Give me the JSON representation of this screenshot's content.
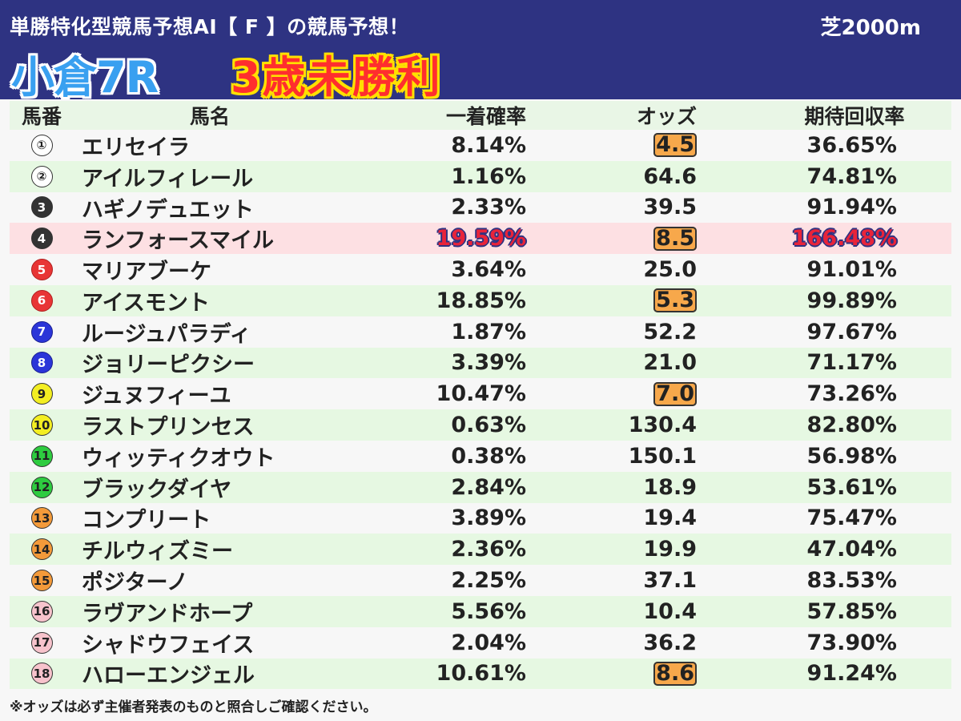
{
  "header": {
    "subtitle": "単勝特化型競馬予想AI【 F 】の競馬予想！",
    "surface": "芝2000m",
    "race": "小倉7R",
    "race_class": "3歳未勝利"
  },
  "columns": {
    "num": "馬番",
    "name": "馬名",
    "win_prob": "一着確率",
    "odds": "オッズ",
    "expected_return": "期待回収率"
  },
  "rows": [
    {
      "num": "①",
      "name": "エリセイラ",
      "prob": "8.14%",
      "odds": "4.5",
      "ev": "36.65%",
      "badge": "w"
    },
    {
      "num": "②",
      "name": "アイルフィレール",
      "prob": "1.16%",
      "odds": "64.6",
      "ev": "74.81%",
      "badge": "w"
    },
    {
      "num": "3",
      "name": "ハギノデュエット",
      "prob": "2.33%",
      "odds": "39.5",
      "ev": "91.94%",
      "badge": "k"
    },
    {
      "num": "4",
      "name": "ランフォースマイル",
      "prob": "19.59%",
      "odds": "8.5",
      "ev": "166.48%",
      "badge": "k"
    },
    {
      "num": "5",
      "name": "マリアブーケ",
      "prob": "3.64%",
      "odds": "25.0",
      "ev": "91.01%",
      "badge": "r"
    },
    {
      "num": "6",
      "name": "アイスモント",
      "prob": "18.85%",
      "odds": "5.3",
      "ev": "99.89%",
      "badge": "r"
    },
    {
      "num": "7",
      "name": "ルージュパラディ",
      "prob": "1.87%",
      "odds": "52.2",
      "ev": "97.67%",
      "badge": "b"
    },
    {
      "num": "8",
      "name": "ジョリーピクシー",
      "prob": "3.39%",
      "odds": "21.0",
      "ev": "71.17%",
      "badge": "b"
    },
    {
      "num": "9",
      "name": "ジュヌフィーユ",
      "prob": "10.47%",
      "odds": "7.0",
      "ev": "73.26%",
      "badge": "y"
    },
    {
      "num": "10",
      "name": "ラストプリンセス",
      "prob": "0.63%",
      "odds": "130.4",
      "ev": "82.80%",
      "badge": "y"
    },
    {
      "num": "11",
      "name": "ウィッティクオウト",
      "prob": "0.38%",
      "odds": "150.1",
      "ev": "56.98%",
      "badge": "g"
    },
    {
      "num": "12",
      "name": "ブラックダイヤ",
      "prob": "2.84%",
      "odds": "18.9",
      "ev": "53.61%",
      "badge": "g"
    },
    {
      "num": "13",
      "name": "コンプリート",
      "prob": "3.89%",
      "odds": "19.4",
      "ev": "75.47%",
      "badge": "o"
    },
    {
      "num": "14",
      "name": "チルウィズミー",
      "prob": "2.36%",
      "odds": "19.9",
      "ev": "47.04%",
      "badge": "o"
    },
    {
      "num": "15",
      "name": "ポジターノ",
      "prob": "2.25%",
      "odds": "37.1",
      "ev": "83.53%",
      "badge": "o"
    },
    {
      "num": "16",
      "name": "ラヴアンドホープ",
      "prob": "5.56%",
      "odds": "10.4",
      "ev": "57.85%",
      "badge": "p"
    },
    {
      "num": "17",
      "name": "シャドウフェイス",
      "prob": "2.04%",
      "odds": "36.2",
      "ev": "73.90%",
      "badge": "p"
    },
    {
      "num": "18",
      "name": "ハローエンジェル",
      "prob": "10.61%",
      "odds": "8.6",
      "ev": "91.24%",
      "badge": "p"
    }
  ],
  "favorites_odds_rows": [
    0,
    3,
    5,
    8,
    17
  ],
  "highlight_row": 3,
  "note": "※オッズは必ず主催者発表のものと照合しご確認ください。",
  "colors": {
    "header_bg": "#2e3382",
    "row_alt": "#e6f8e2",
    "row_highlight": "#fde0e3",
    "fav_odds": "#f7a84b",
    "race_text": "#39a0f0",
    "class_text": "#ff2e2e",
    "class_outline": "#ffe000"
  }
}
